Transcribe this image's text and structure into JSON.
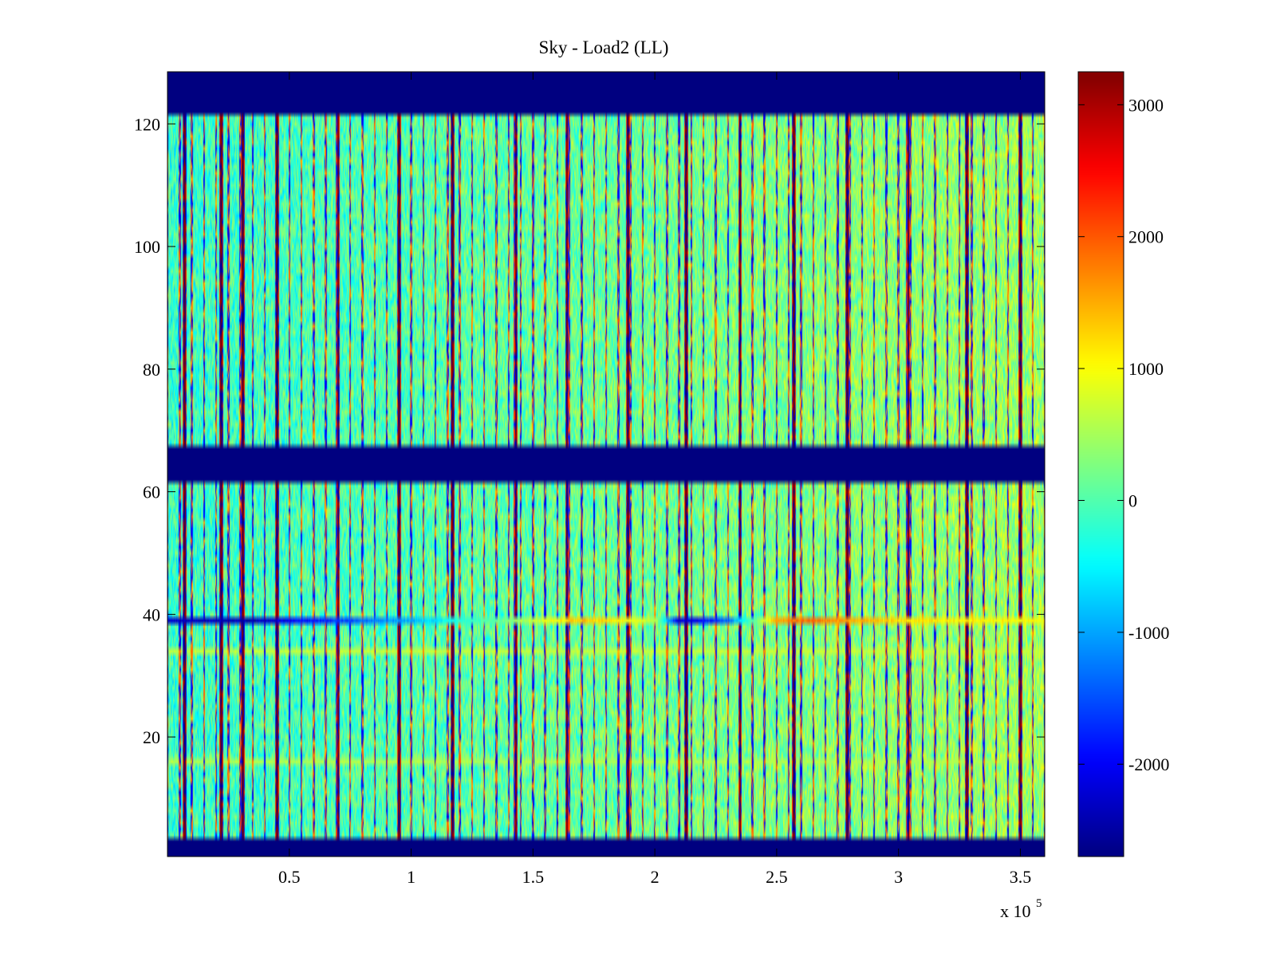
{
  "chart_data": {
    "type": "heatmap",
    "title": "Sky - Load2 (LL)",
    "xlabel": "",
    "ylabel": "",
    "x_exponent_base": "x 10",
    "x_exponent_power": "5",
    "xlim": [
      0,
      3.6
    ],
    "ylim": [
      0.5,
      128.5
    ],
    "x_ticks": [
      0.5,
      1,
      1.5,
      2,
      2.5,
      3,
      3.5
    ],
    "x_tick_labels": [
      "0.5",
      "1",
      "1.5",
      "2",
      "2.5",
      "3",
      "3.5"
    ],
    "y_ticks": [
      20,
      40,
      60,
      80,
      100,
      120
    ],
    "y_tick_labels": [
      "20",
      "40",
      "60",
      "80",
      "100",
      "120"
    ],
    "colorbar": {
      "range": [
        -2700,
        3250
      ],
      "ticks": [
        -2000,
        -1000,
        0,
        1000,
        2000,
        3000
      ],
      "tick_labels": [
        "-2000",
        "-1000",
        "0",
        "1000",
        "2000",
        "3000"
      ],
      "colormap": "jet"
    },
    "masked_row_ranges": [
      [
        1,
        3
      ],
      [
        62,
        67
      ],
      [
        122,
        128
      ]
    ],
    "masked_value": -2700,
    "background_level": {
      "start": -150,
      "end": 450
    },
    "anomaly_row": 39,
    "anomaly_profile": [
      {
        "x": 0.0,
        "value": -2300
      },
      {
        "x": 0.35,
        "value": -2400
      },
      {
        "x": 0.7,
        "value": -1600
      },
      {
        "x": 1.0,
        "value": -900
      },
      {
        "x": 1.4,
        "value": 300
      },
      {
        "x": 1.7,
        "value": 1400
      },
      {
        "x": 2.0,
        "value": 700
      },
      {
        "x": 2.1,
        "value": -2300
      },
      {
        "x": 2.3,
        "value": -1400
      },
      {
        "x": 2.5,
        "value": 1500
      },
      {
        "x": 2.6,
        "value": 1900
      },
      {
        "x": 3.0,
        "value": 1200
      },
      {
        "x": 3.6,
        "value": 1000
      }
    ],
    "stripe_rows": [
      {
        "row": 34,
        "value": 650
      },
      {
        "row": 16,
        "value": 550
      }
    ],
    "spike_columns_x": [
      0.07,
      0.22,
      0.31,
      0.45,
      0.7,
      0.95,
      1.17,
      1.43,
      1.64,
      1.89,
      2.13,
      2.35,
      2.57,
      2.79,
      3.04,
      3.28,
      3.5
    ],
    "spike_values": [
      3200,
      -2600
    ],
    "column_line_spacing": 0.05
  }
}
